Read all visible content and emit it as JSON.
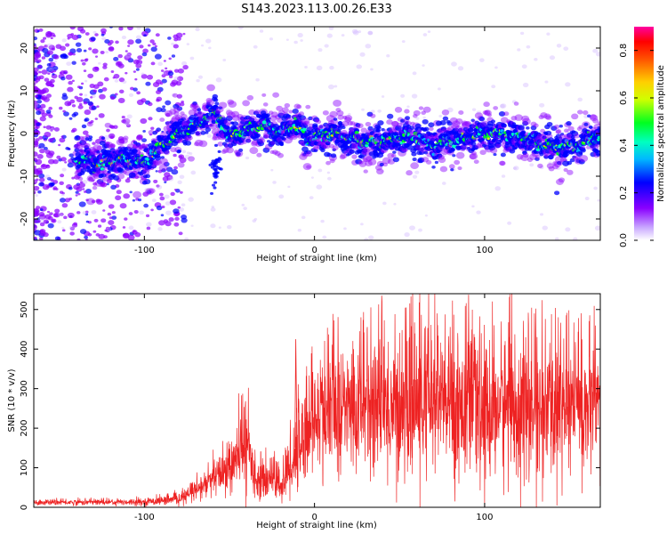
{
  "title": "S143.2023.113.00.26.E33",
  "chart_data": [
    {
      "type": "heatmap",
      "xlabel": "Height of straight line (km)",
      "ylabel": "Frequency (Hz)",
      "xlim": [
        -165,
        168
      ],
      "ylim": [
        -25,
        25
      ],
      "xticks": [
        -100,
        0,
        100
      ],
      "yticks": [
        -20,
        -10,
        0,
        10,
        20
      ],
      "colorbar": {
        "label": "Normalized spectral amplitude",
        "range": [
          0,
          0.9
        ],
        "ticks": [
          "0.0",
          "0.2",
          "0.4",
          "0.6",
          "0.8"
        ],
        "colors": [
          "#ffffff",
          "#8a00ff",
          "#0000ff",
          "#00d8ff",
          "#00ff40",
          "#ffff00",
          "#ff8000",
          "#ff0000",
          "#ff00a0"
        ]
      },
      "ridge": {
        "description_free": true,
        "x": [
          -140,
          -125,
          -110,
          -100,
          -90,
          -80,
          -70,
          -60,
          -55,
          -50,
          -40,
          -30,
          -20,
          -12,
          -5,
          0,
          10,
          20,
          30,
          40,
          50,
          60,
          70,
          80,
          90,
          100,
          110,
          120,
          130,
          140,
          150,
          160,
          166
        ],
        "y": [
          -6,
          -7,
          -6,
          -7,
          -3,
          0,
          2,
          5,
          3,
          -1,
          1,
          2,
          0,
          2,
          -1,
          -1,
          0,
          -1,
          -2,
          -2,
          -1,
          -1,
          -3,
          -2,
          -1,
          0,
          0,
          -1,
          -2,
          -3,
          -3,
          -2,
          -1
        ]
      }
    },
    {
      "type": "line",
      "xlabel": "Height of straight line (km)",
      "ylabel": "SNR (10 * v/v)",
      "xlim": [
        -165,
        168
      ],
      "ylim": [
        0,
        540
      ],
      "xticks": [
        -100,
        0,
        100
      ],
      "yticks": [
        0,
        100,
        200,
        300,
        400,
        500
      ],
      "color": "#ee2222",
      "envelope": {
        "x": [
          -165,
          -100,
          -80,
          -70,
          -60,
          -50,
          -45,
          -40,
          -35,
          -30,
          -25,
          -20,
          -15,
          -10,
          -5,
          0,
          10,
          20,
          30,
          40,
          50,
          60,
          70,
          80,
          90,
          100,
          110,
          120,
          130,
          140,
          150,
          160,
          168
        ],
        "mean": [
          12,
          14,
          20,
          40,
          70,
          100,
          120,
          170,
          80,
          60,
          90,
          50,
          100,
          150,
          200,
          220,
          240,
          250,
          260,
          260,
          250,
          260,
          270,
          260,
          260,
          240,
          260,
          250,
          240,
          250,
          270,
          250,
          240
        ],
        "amp": [
          6,
          8,
          12,
          25,
          40,
          60,
          80,
          100,
          50,
          40,
          60,
          40,
          80,
          110,
          120,
          130,
          140,
          150,
          160,
          170,
          170,
          180,
          180,
          180,
          170,
          170,
          170,
          170,
          160,
          170,
          170,
          160,
          150
        ]
      }
    }
  ]
}
